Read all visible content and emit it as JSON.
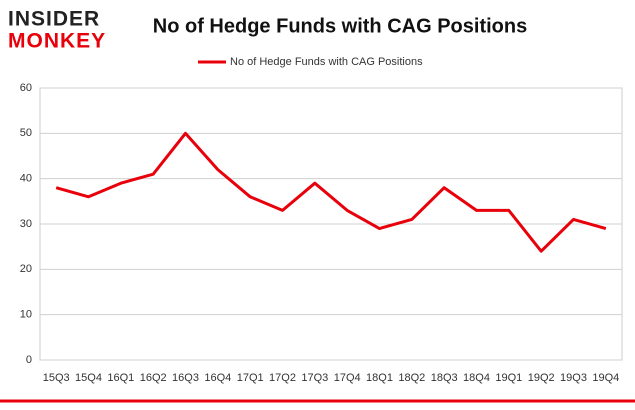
{
  "logo": {
    "top": "INSIDER",
    "bottom": "MONKEY"
  },
  "chart_data": {
    "type": "line",
    "title": "No of Hedge Funds with CAG Positions",
    "categories": [
      "15Q3",
      "15Q4",
      "16Q1",
      "16Q2",
      "16Q3",
      "16Q4",
      "17Q1",
      "17Q2",
      "17Q3",
      "17Q4",
      "18Q1",
      "18Q2",
      "18Q3",
      "18Q4",
      "19Q1",
      "19Q2",
      "19Q3",
      "19Q4"
    ],
    "series": [
      {
        "name": "No of Hedge Funds with CAG Positions",
        "color": "#e8000b",
        "values": [
          38,
          36,
          39,
          41,
          50,
          42,
          36,
          33,
          39,
          33,
          29,
          31,
          38,
          33,
          33,
          24,
          31,
          29
        ]
      }
    ],
    "ylim": [
      0,
      60
    ],
    "yticks": [
      0,
      10,
      20,
      30,
      40,
      50,
      60
    ],
    "grid": true,
    "legend": "top"
  }
}
